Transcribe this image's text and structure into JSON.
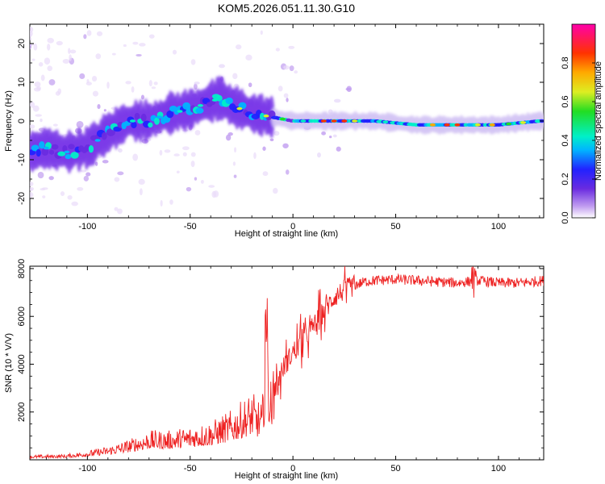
{
  "title": "KOM5.2026.051.11.30.G10",
  "colors": {
    "snr_line": "#ee2222",
    "axes": "#000000"
  },
  "chart_data": [
    {
      "type": "heatmap",
      "name": "spectrogram",
      "xlabel": "Height of straight line (km)",
      "ylabel": "Frequency (Hz)",
      "xlim": [
        -128,
        122
      ],
      "ylim": [
        -25,
        25
      ],
      "xticks": [
        -100,
        -50,
        0,
        50,
        100
      ],
      "yticks": [
        -20,
        -10,
        0,
        10,
        20
      ],
      "ridge": {
        "x": [
          -128,
          -120,
          -110,
          -100,
          -90,
          -80,
          -70,
          -60,
          -50,
          -40,
          -35,
          -30,
          -25,
          -20,
          -10,
          0,
          10,
          20,
          30,
          40,
          60,
          80,
          100,
          120
        ],
        "y": [
          -8,
          -7,
          -8,
          -7,
          -3,
          0,
          0,
          2,
          3,
          5,
          6,
          4,
          3,
          2,
          1,
          0,
          0,
          0,
          0,
          0,
          -1,
          -1,
          -1,
          0
        ]
      },
      "colorbar": {
        "label": "Normalized spectral amplitude",
        "range": [
          0,
          1
        ],
        "ticks": [
          "0.0",
          "0.2",
          "0.4",
          "0.6",
          "0.8"
        ]
      }
    },
    {
      "type": "line",
      "name": "snr",
      "xlabel": "Height of straight line (km)",
      "ylabel": "SNR (10 * V/V)",
      "xlim": [
        -128,
        122
      ],
      "ylim": [
        0,
        8100
      ],
      "xticks": [
        -100,
        -50,
        0,
        50,
        100
      ],
      "yticks": [
        2000,
        4000,
        6000,
        8000
      ],
      "series": [
        {
          "name": "SNR",
          "x": [
            -128,
            -110,
            -100,
            -90,
            -80,
            -70,
            -60,
            -50,
            -40,
            -30,
            -25,
            -20,
            -15,
            -13,
            -10,
            -5,
            0,
            5,
            10,
            15,
            20,
            25,
            30,
            35,
            40,
            50,
            60,
            70,
            80,
            90,
            100,
            110,
            122
          ],
          "y": [
            200,
            250,
            400,
            600,
            900,
            1300,
            1300,
            1500,
            1700,
            2200,
            2600,
            3000,
            2500,
            6000,
            2800,
            3800,
            4500,
            5000,
            5600,
            6200,
            6800,
            7100,
            7300,
            7450,
            7500,
            7550,
            7500,
            7450,
            7400,
            7500,
            7400,
            7400,
            7500
          ]
        }
      ]
    }
  ]
}
